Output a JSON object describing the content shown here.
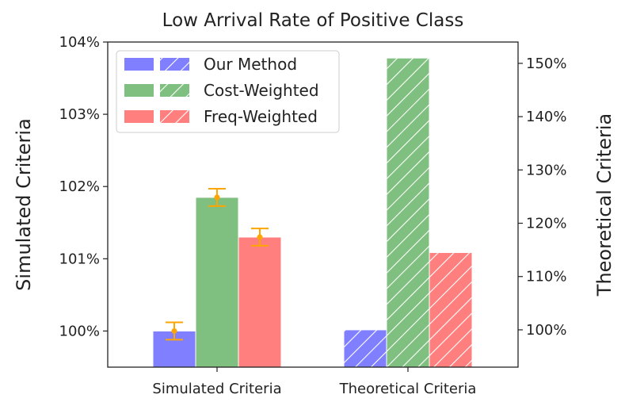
{
  "chart_data": {
    "type": "bar",
    "title": "Low Arrival Rate of Positive Class",
    "categories": [
      "Simulated Criteria",
      "Theoretical Criteria"
    ],
    "left_axis": {
      "label": "Simulated Criteria",
      "ylim": [
        99.5,
        104.0
      ],
      "ticks": [
        100,
        101,
        102,
        103,
        104
      ],
      "tick_labels": [
        "100%",
        "101%",
        "102%",
        "103%",
        "104%"
      ]
    },
    "right_axis": {
      "label": "Theoretical Criteria",
      "ylim": [
        93,
        154
      ],
      "ticks": [
        100,
        110,
        120,
        130,
        140,
        150
      ],
      "tick_labels": [
        "100%",
        "110%",
        "120%",
        "130%",
        "140%",
        "150%"
      ]
    },
    "series": [
      {
        "name": "Our Method",
        "color": "#7f7fff",
        "simulated": 100.0,
        "simulated_err": 0.12,
        "theoretical": 100.0
      },
      {
        "name": "Cost-Weighted",
        "color": "#7fbf7f",
        "simulated": 101.85,
        "simulated_err": 0.12,
        "theoretical": 151.0
      },
      {
        "name": "Freq-Weighted",
        "color": "#ff7f7f",
        "simulated": 101.3,
        "simulated_err": 0.12,
        "theoretical": 114.5
      }
    ],
    "error_color": "#ffa500",
    "legend": {
      "position": "top-left"
    }
  }
}
